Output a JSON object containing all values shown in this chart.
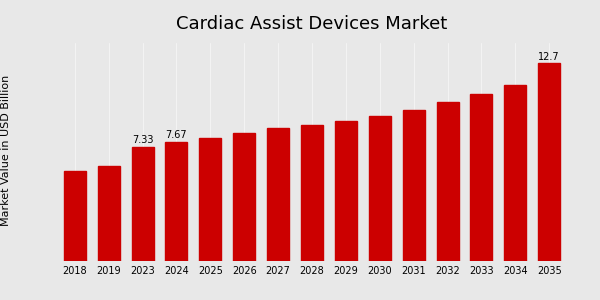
{
  "title": "Cardiac Assist Devices Market",
  "ylabel": "Market Value in USD Billion",
  "categories": [
    "2018",
    "2019",
    "2023",
    "2024",
    "2025",
    "2026",
    "2027",
    "2028",
    "2029",
    "2030",
    "2031",
    "2032",
    "2033",
    "2034",
    "2035"
  ],
  "values": [
    5.8,
    6.1,
    7.33,
    7.67,
    7.9,
    8.2,
    8.55,
    8.75,
    9.0,
    9.3,
    9.7,
    10.2,
    10.7,
    11.3,
    12.7
  ],
  "bar_color": "#cc0000",
  "bar_edge_color": "#cc0000",
  "labeled_bars": {
    "2": "7.33",
    "3": "7.67",
    "14": "12.7"
  },
  "label_fontsize": 7,
  "title_fontsize": 13,
  "ylabel_fontsize": 8,
  "xtick_fontsize": 7,
  "background_color": "#e8e8e8",
  "ylim": [
    0,
    14
  ]
}
